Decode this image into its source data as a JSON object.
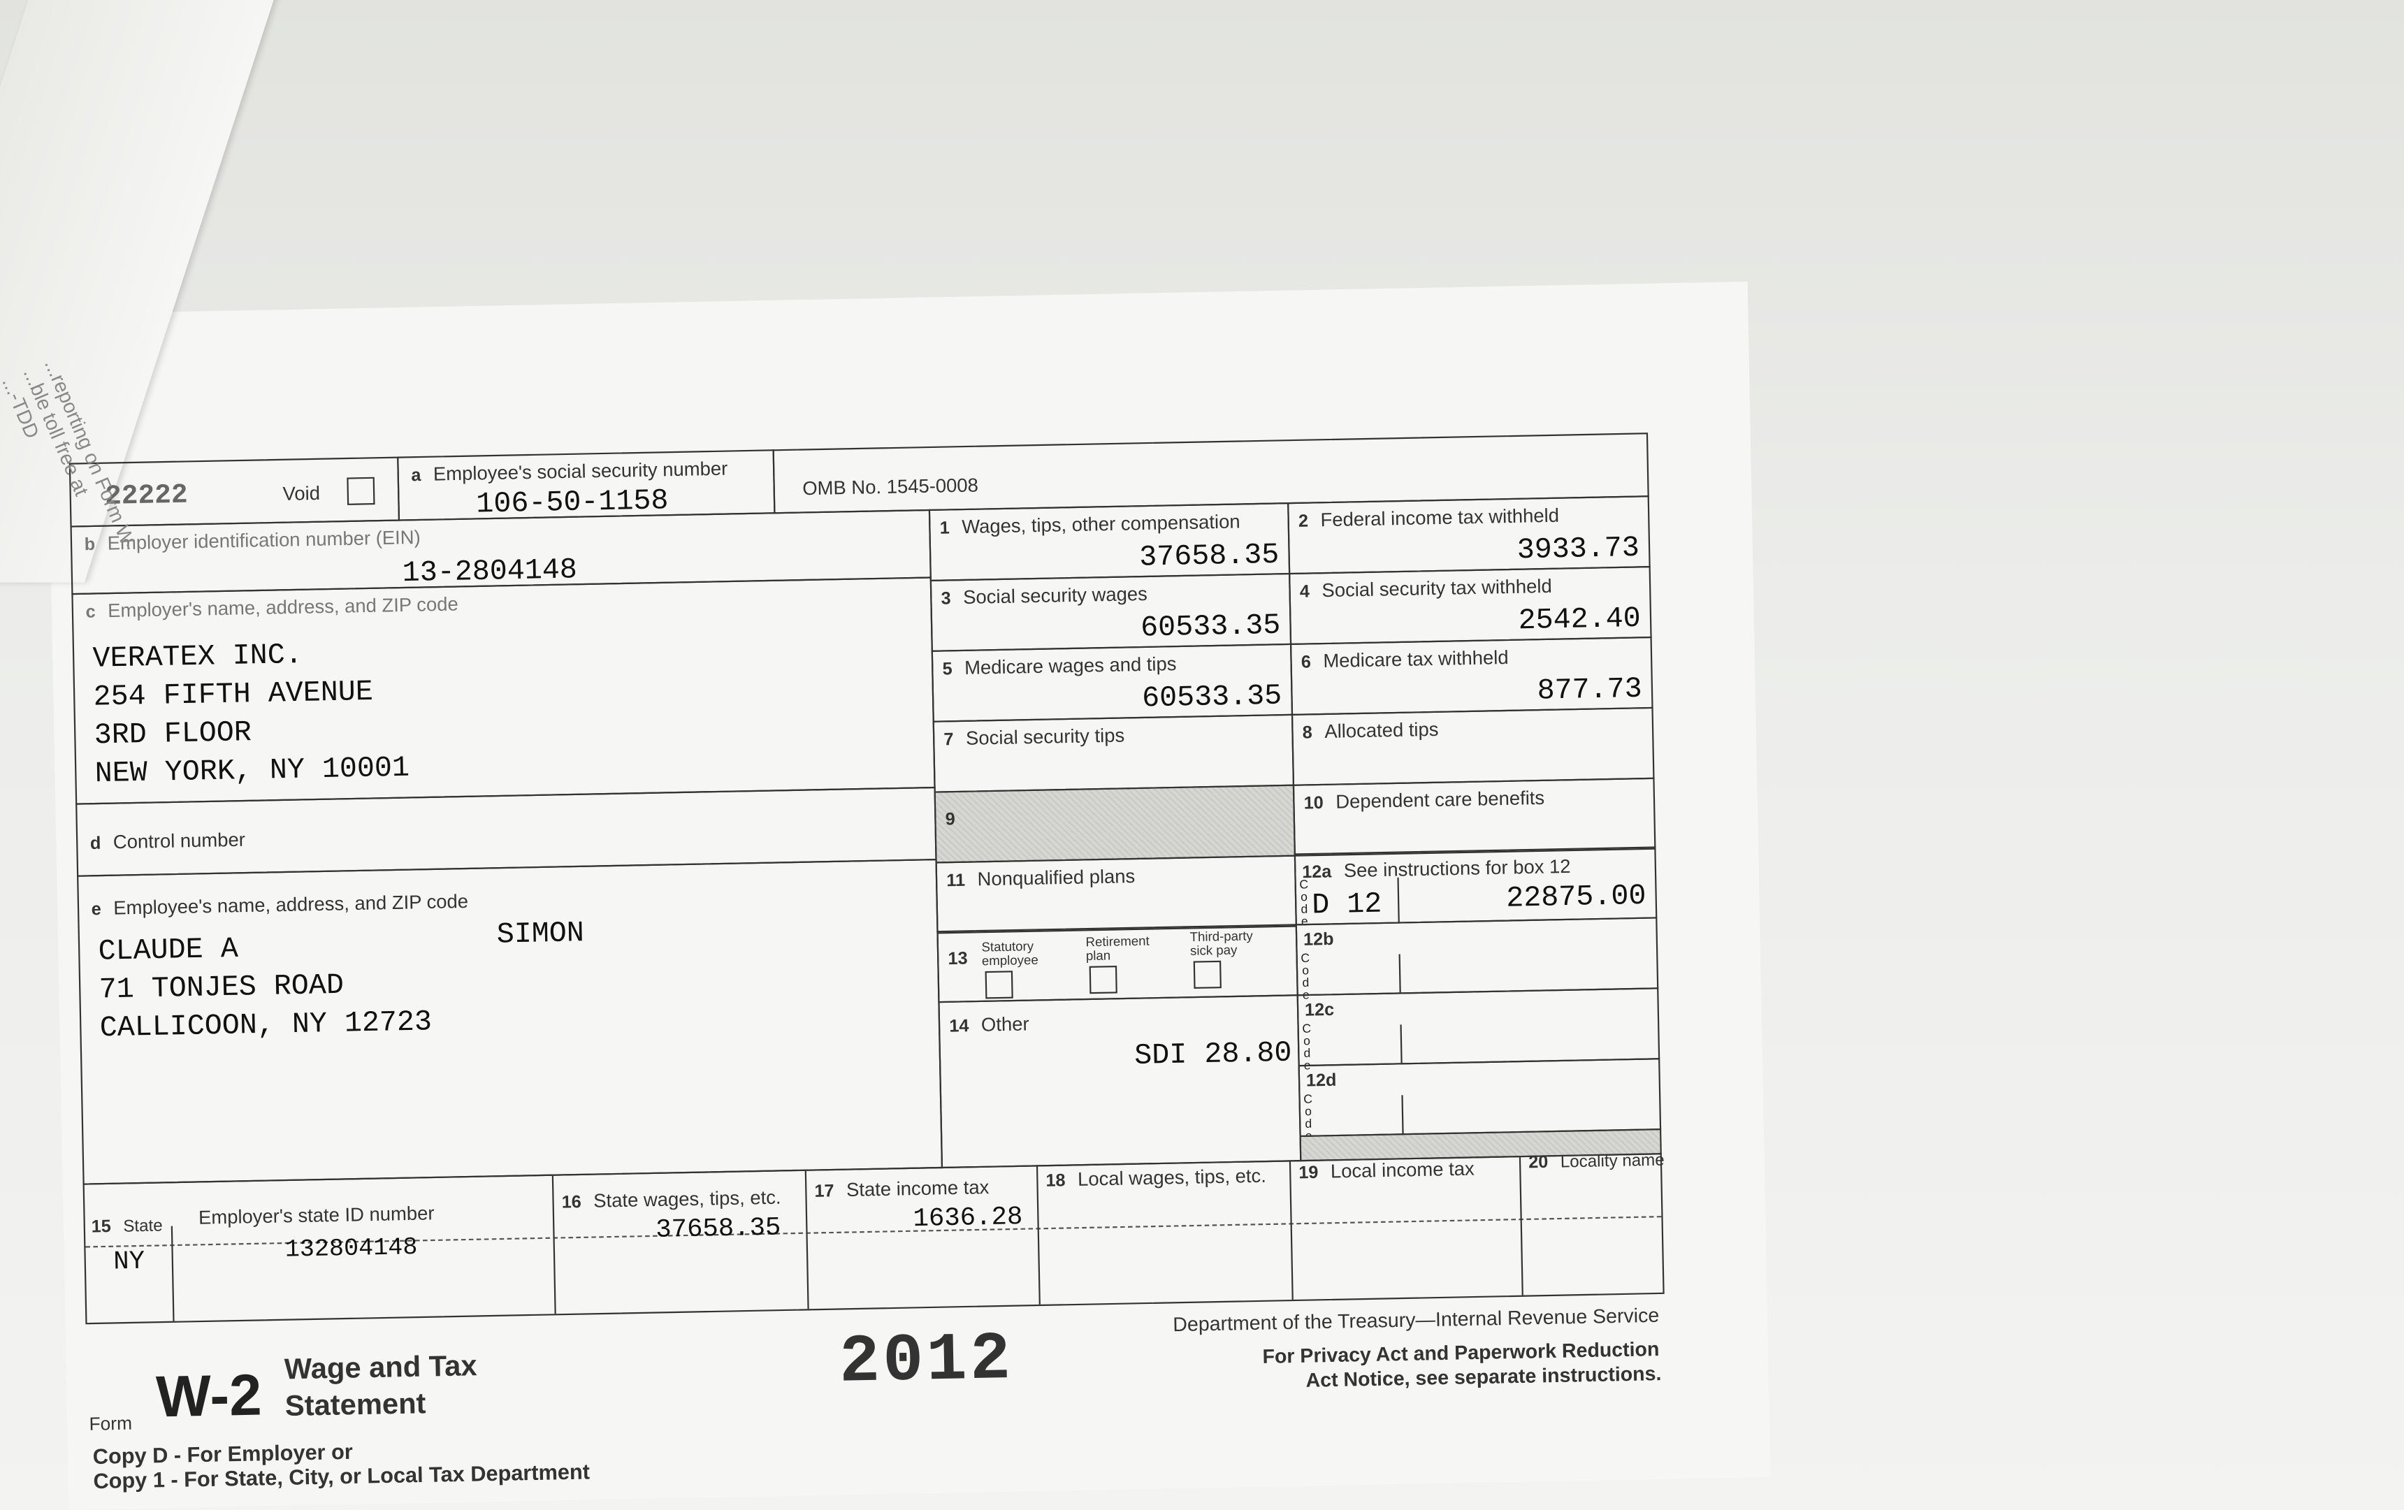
{
  "fold_text": [
    "...reporting on Form W-",
    "...ble toll free at",
    "...-TDD"
  ],
  "top": {
    "form_code": "22222",
    "void_label": "Void",
    "ssn_label": "Employee's social security number",
    "ssn_letter": "a",
    "ssn": "106-50-1158",
    "omb": "OMB No. 1545-0008"
  },
  "b": {
    "letter": "b",
    "label": "Employer identification number (EIN)",
    "value": "13-2804148"
  },
  "c": {
    "letter": "c",
    "label": "Employer's name, address, and ZIP code",
    "lines": [
      "VERATEX INC.",
      "254 FIFTH AVENUE",
      "3RD FLOOR",
      "NEW YORK, NY  10001"
    ]
  },
  "d": {
    "letter": "d",
    "label": "Control number"
  },
  "e": {
    "letter": "e",
    "label": "Employee's name, address, and ZIP code",
    "first": "CLAUDE A",
    "last": "SIMON",
    "lines": [
      "71 TONJES ROAD",
      "CALLICOON, NY  12723"
    ]
  },
  "boxes": [
    {
      "n": "1",
      "label": "Wages, tips, other compensation",
      "value": "37658.35"
    },
    {
      "n": "2",
      "label": "Federal income tax withheld",
      "value": "3933.73"
    },
    {
      "n": "3",
      "label": "Social security wages",
      "value": "60533.35"
    },
    {
      "n": "4",
      "label": "Social security tax withheld",
      "value": "2542.40"
    },
    {
      "n": "5",
      "label": "Medicare wages and tips",
      "value": "60533.35"
    },
    {
      "n": "6",
      "label": "Medicare tax withheld",
      "value": "877.73"
    },
    {
      "n": "7",
      "label": "Social security tips",
      "value": ""
    },
    {
      "n": "8",
      "label": "Allocated tips",
      "value": ""
    },
    {
      "n": "9",
      "label": "",
      "value": ""
    },
    {
      "n": "10",
      "label": "Dependent care benefits",
      "value": ""
    },
    {
      "n": "11",
      "label": "Nonqualified plans",
      "value": ""
    }
  ],
  "box12": {
    "a_label": "12a",
    "a_text": "See instructions for box 12",
    "a_code": "D 12",
    "a_value": "22875.00",
    "b": "12b",
    "c": "12c",
    "d": "12d",
    "code_word": "C o d e"
  },
  "box13": {
    "n": "13",
    "statutory": "Statutory employee",
    "retirement": "Retirement plan",
    "thirdparty": "Third-party sick pay"
  },
  "box14": {
    "n": "14",
    "label": "Other",
    "value": "SDI 28.80"
  },
  "state": {
    "n15": "15",
    "state_label": "State",
    "id_label": "Employer's state ID number",
    "state": "NY",
    "id": "132804148",
    "n16": "16",
    "l16": "State wages, tips, etc.",
    "v16": "37658.35",
    "n17": "17",
    "l17": "State income tax",
    "v17": "1636.28",
    "n18": "18",
    "l18": "Local wages, tips, etc.",
    "n19": "19",
    "l19": "Local income tax",
    "n20": "20",
    "l20": "Locality name"
  },
  "footer": {
    "form": "Form",
    "w2": "W-2",
    "title1": "Wage and Tax",
    "title2": "Statement",
    "year": "2012",
    "dept": "Department of the Treasury—Internal Revenue Service",
    "privacy1": "For Privacy Act and Paperwork Reduction",
    "privacy2": "Act Notice, see separate instructions.",
    "copy1": "Copy D - For Employer or",
    "copy2": "Copy 1 - For State, City, or Local Tax Department"
  }
}
